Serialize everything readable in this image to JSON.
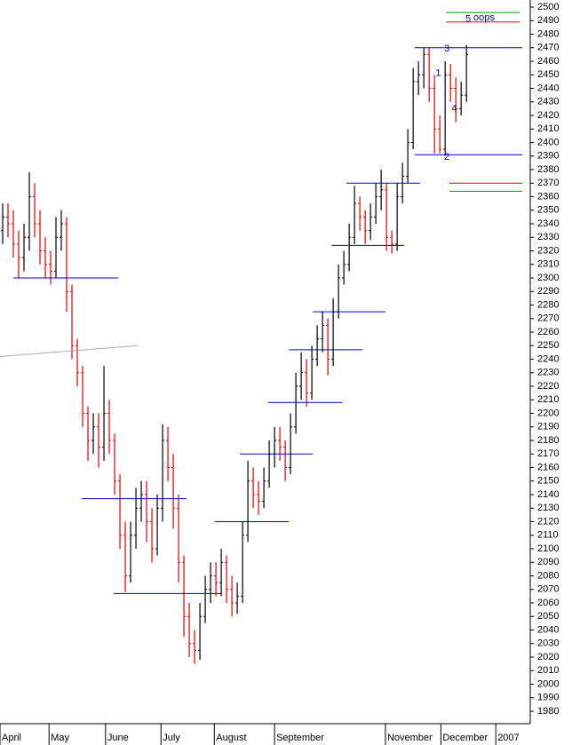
{
  "chart_data": {
    "type": "ohlc",
    "up_color": "#000000",
    "down_color": "#dd0000",
    "open": [
      2335,
      2345,
      2340,
      2325,
      2315,
      2330,
      2360,
      2340,
      2320,
      2310,
      2305,
      2330,
      2340,
      2290,
      2250,
      2230,
      2200,
      2180,
      2190,
      2175,
      2200,
      2180,
      2150,
      2110,
      2080,
      2110,
      2130,
      2140,
      2120,
      2100,
      2130,
      2180,
      2160,
      2130,
      2090,
      2050,
      2030,
      2025,
      2050,
      2070,
      2080,
      2075,
      2090,
      2070,
      2060,
      2065,
      2110,
      2150,
      2140,
      2135,
      2150,
      2170,
      2180,
      2175,
      2160,
      2190,
      2220,
      2230,
      2215,
      2240,
      2255,
      2265,
      2240,
      2275,
      2300,
      2310,
      2330,
      2355,
      2345,
      2335,
      2345,
      2360,
      2365,
      2330,
      2325,
      2360,
      2375,
      2400,
      2445,
      2450,
      2465,
      2440,
      2410,
      2395,
      2450,
      2440,
      2425,
      2435
    ],
    "high": [
      2355,
      2355,
      2350,
      2335,
      2340,
      2378,
      2370,
      2350,
      2330,
      2320,
      2345,
      2350,
      2345,
      2295,
      2255,
      2235,
      2205,
      2200,
      2200,
      2235,
      2210,
      2185,
      2155,
      2120,
      2120,
      2145,
      2150,
      2150,
      2130,
      2140,
      2192,
      2190,
      2170,
      2140,
      2095,
      2060,
      2040,
      2060,
      2080,
      2090,
      2090,
      2100,
      2095,
      2080,
      2075,
      2120,
      2165,
      2160,
      2150,
      2160,
      2180,
      2190,
      2190,
      2180,
      2200,
      2230,
      2245,
      2240,
      2250,
      2265,
      2275,
      2270,
      2285,
      2310,
      2320,
      2340,
      2368,
      2360,
      2350,
      2355,
      2370,
      2380,
      2370,
      2335,
      2370,
      2385,
      2410,
      2455,
      2460,
      2470,
      2470,
      2450,
      2420,
      2460,
      2458,
      2448,
      2445,
      2472
    ],
    "low": [
      2325,
      2330,
      2315,
      2300,
      2305,
      2320,
      2330,
      2310,
      2300,
      2295,
      2300,
      2320,
      2275,
      2240,
      2220,
      2190,
      2165,
      2170,
      2160,
      2165,
      2170,
      2140,
      2100,
      2068,
      2075,
      2100,
      2120,
      2105,
      2090,
      2095,
      2120,
      2150,
      2115,
      2075,
      2035,
      2020,
      2015,
      2018,
      2045,
      2060,
      2065,
      2065,
      2060,
      2050,
      2052,
      2060,
      2105,
      2130,
      2125,
      2130,
      2145,
      2160,
      2165,
      2150,
      2155,
      2185,
      2210,
      2205,
      2210,
      2235,
      2245,
      2228,
      2235,
      2270,
      2295,
      2305,
      2325,
      2335,
      2325,
      2328,
      2340,
      2350,
      2320,
      2318,
      2320,
      2355,
      2370,
      2395,
      2435,
      2440,
      2430,
      2392,
      2392,
      2390,
      2430,
      2415,
      2420,
      2430
    ],
    "close": [
      2345,
      2340,
      2325,
      2315,
      2330,
      2360,
      2340,
      2320,
      2310,
      2305,
      2330,
      2340,
      2290,
      2250,
      2230,
      2200,
      2180,
      2190,
      2175,
      2200,
      2180,
      2150,
      2110,
      2080,
      2110,
      2130,
      2140,
      2120,
      2100,
      2130,
      2180,
      2160,
      2130,
      2090,
      2050,
      2030,
      2025,
      2050,
      2070,
      2080,
      2075,
      2090,
      2070,
      2060,
      2065,
      2110,
      2150,
      2140,
      2135,
      2150,
      2170,
      2180,
      2175,
      2160,
      2190,
      2220,
      2230,
      2215,
      2240,
      2255,
      2265,
      2240,
      2275,
      2300,
      2310,
      2330,
      2355,
      2345,
      2335,
      2345,
      2360,
      2365,
      2330,
      2325,
      2360,
      2375,
      2400,
      2445,
      2450,
      2465,
      2440,
      2410,
      2395,
      2450,
      2440,
      2425,
      2435,
      2465
    ],
    "xlim": [
      -0.5,
      97.8
    ],
    "xticks": [
      {
        "value": -0.5,
        "label": "April"
      },
      {
        "value": 8.7,
        "label": "May"
      },
      {
        "value": 19.3,
        "label": "June"
      },
      {
        "value": 29.7,
        "label": "July"
      },
      {
        "value": 39.7,
        "label": "August"
      },
      {
        "value": 51,
        "label": "September"
      },
      {
        "value": 71.8,
        "label": "November"
      },
      {
        "value": 82.2,
        "label": "December"
      },
      {
        "value": 92.5,
        "label": "2007"
      }
    ],
    "ylim": [
      1980,
      2500
    ],
    "yticks": [
      2500,
      2490,
      2480,
      2470,
      2460,
      2450,
      2440,
      2430,
      2420,
      2410,
      2400,
      2390,
      2380,
      2370,
      2360,
      2350,
      2340,
      2330,
      2320,
      2310,
      2300,
      2290,
      2280,
      2270,
      2260,
      2250,
      2240,
      2230,
      2220,
      2210,
      2200,
      2190,
      2180,
      2170,
      2160,
      2150,
      2140,
      2130,
      2120,
      2110,
      2100,
      2090,
      2080,
      2070,
      2060,
      2050,
      2040,
      2030,
      2020,
      2010,
      2000,
      1990,
      1980
    ],
    "lines": [
      {
        "x1": 2,
        "x2": 21.7,
        "y1": 2300,
        "y2": 2300,
        "color": "#0000cc"
      },
      {
        "x1": 14.8,
        "x2": 34.5,
        "y1": 2137,
        "y2": 2137,
        "color": "#0000cc"
      },
      {
        "x1": 20.8,
        "x2": 41.2,
        "y1": 2067,
        "y2": 2067,
        "color": "#0000cc"
      },
      {
        "x1": 39.8,
        "x2": 53.7,
        "y1": 2120,
        "y2": 2120,
        "color": "#0000cc"
      },
      {
        "x1": 44.5,
        "x2": 58.2,
        "y1": 2170,
        "y2": 2170,
        "color": "#0000cc"
      },
      {
        "x1": 49.8,
        "x2": 63.7,
        "y1": 2208,
        "y2": 2208,
        "color": "#0000cc"
      },
      {
        "x1": 53.7,
        "x2": 67.5,
        "y1": 2247,
        "y2": 2247,
        "color": "#0000cc"
      },
      {
        "x1": 58.2,
        "x2": 71.8,
        "y1": 2275,
        "y2": 2275,
        "color": "#0000cc"
      },
      {
        "x1": 61.7,
        "x2": 75.3,
        "y1": 2324,
        "y2": 2324,
        "color": "#0000cc"
      },
      {
        "x1": 64.5,
        "x2": 78.3,
        "y1": 2370,
        "y2": 2370,
        "color": "#0000cc"
      },
      {
        "x1": 77.3,
        "x2": 97.5,
        "y1": 2470,
        "y2": 2470,
        "color": "#0000cc"
      },
      {
        "x1": 77.3,
        "x2": 97.5,
        "y1": 2391,
        "y2": 2391,
        "color": "#0000cc"
      },
      {
        "x1": 83.2,
        "x2": 97,
        "y1": 2496,
        "y2": 2496,
        "color": "#009900"
      },
      {
        "x1": 83.2,
        "x2": 97,
        "y1": 2489,
        "y2": 2489,
        "color": "#dd0000"
      },
      {
        "x1": 83.8,
        "x2": 97.5,
        "y1": 2370,
        "y2": 2370,
        "color": "#dd0000"
      },
      {
        "x1": 83.8,
        "x2": 97.5,
        "y1": 2364,
        "y2": 2364,
        "color": "#009900"
      },
      {
        "x1": -0.5,
        "x2": 25.3,
        "y1": 2242,
        "y2": 2250,
        "color": "#aaaaaa"
      }
    ],
    "annotations": [
      {
        "text": "5",
        "x": 86.8,
        "y": 2491
      },
      {
        "text": "oops",
        "x": 88.3,
        "y": 2492
      },
      {
        "text": "3",
        "x": 82.8,
        "y": 2469
      },
      {
        "text": "1",
        "x": 81.2,
        "y": 2451
      },
      {
        "text": "4",
        "x": 84.2,
        "y": 2425
      },
      {
        "text": "2",
        "x": 82.8,
        "y": 2389
      }
    ]
  }
}
